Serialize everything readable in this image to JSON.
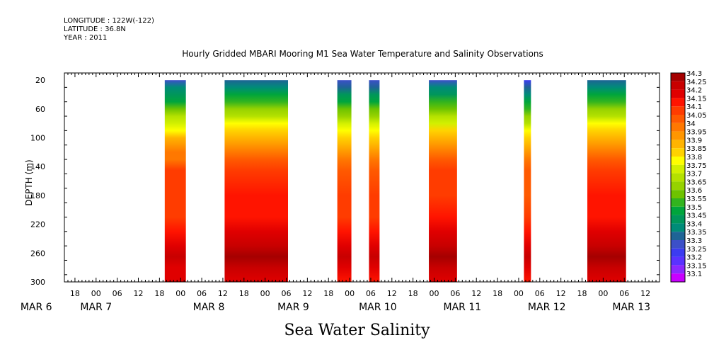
{
  "meta": {
    "longitude": "LONGITUDE : 122W(-122)",
    "latitude": "LATITUDE : 36.8N",
    "year": "YEAR : 2011"
  },
  "chart_data": {
    "type": "heatmap",
    "title": "Hourly Gridded MBARI Mooring M1 Sea Water Temperature and Salinity Observations",
    "subtitle": "Sea Water Salinity",
    "ylabel": "DEPTH (m)",
    "xlabel": "",
    "x_unit": "hours since 2011-03-06 00:00",
    "ylim": [
      300,
      10
    ],
    "y_ticks": [
      20,
      60,
      100,
      140,
      180,
      220,
      260,
      300
    ],
    "x_hour_ticks": [
      {
        "t": 18,
        "label": "18"
      },
      {
        "t": 24,
        "label": "00"
      },
      {
        "t": 30,
        "label": "06"
      },
      {
        "t": 36,
        "label": "12"
      },
      {
        "t": 42,
        "label": "18"
      },
      {
        "t": 48,
        "label": "00"
      },
      {
        "t": 54,
        "label": "06"
      },
      {
        "t": 60,
        "label": "12"
      },
      {
        "t": 66,
        "label": "18"
      },
      {
        "t": 72,
        "label": "00"
      },
      {
        "t": 78,
        "label": "06"
      },
      {
        "t": 84,
        "label": "12"
      },
      {
        "t": 90,
        "label": "18"
      },
      {
        "t": 96,
        "label": "00"
      },
      {
        "t": 102,
        "label": "06"
      },
      {
        "t": 108,
        "label": "12"
      },
      {
        "t": 114,
        "label": "18"
      },
      {
        "t": 120,
        "label": "00"
      },
      {
        "t": 126,
        "label": "06"
      },
      {
        "t": 132,
        "label": "12"
      },
      {
        "t": 138,
        "label": "18"
      },
      {
        "t": 144,
        "label": "00"
      },
      {
        "t": 150,
        "label": "06"
      },
      {
        "t": 156,
        "label": "12"
      },
      {
        "t": 162,
        "label": "18"
      },
      {
        "t": 168,
        "label": "00"
      },
      {
        "t": 174,
        "label": "06"
      },
      {
        "t": 180,
        "label": "12"
      }
    ],
    "x_date_labels": [
      {
        "t": 7,
        "label": "MAR  6"
      },
      {
        "t": 24,
        "label": "MAR  7"
      },
      {
        "t": 56,
        "label": "MAR  8"
      },
      {
        "t": 80,
        "label": "MAR  9"
      },
      {
        "t": 104,
        "label": "MAR 10"
      },
      {
        "t": 128,
        "label": "MAR 11"
      },
      {
        "t": 152,
        "label": "MAR 12"
      },
      {
        "t": 176,
        "label": "MAR 13"
      }
    ],
    "xlim": [
      15,
      184
    ],
    "data_blocks": [
      {
        "t_start": 43.5,
        "t_end": 49.5,
        "variant": "a"
      },
      {
        "t_start": 60.5,
        "t_end": 78.5,
        "variant": "b"
      },
      {
        "t_start": 92.5,
        "t_end": 96.5,
        "variant": "c"
      },
      {
        "t_start": 101.5,
        "t_end": 104.5,
        "variant": "c"
      },
      {
        "t_start": 118.5,
        "t_end": 126.5,
        "variant": "d"
      },
      {
        "t_start": 145.5,
        "t_end": 147.5,
        "variant": "e"
      },
      {
        "t_start": 163.5,
        "t_end": 174.5,
        "variant": "f"
      }
    ],
    "depth_profile": [
      {
        "depth": 20,
        "salinity": 33.3
      },
      {
        "depth": 30,
        "salinity": 33.38
      },
      {
        "depth": 40,
        "salinity": 33.45
      },
      {
        "depth": 50,
        "salinity": 33.52
      },
      {
        "depth": 60,
        "salinity": 33.6
      },
      {
        "depth": 70,
        "salinity": 33.68
      },
      {
        "depth": 80,
        "salinity": 33.75
      },
      {
        "depth": 90,
        "salinity": 33.82
      },
      {
        "depth": 100,
        "salinity": 33.88
      },
      {
        "depth": 110,
        "salinity": 33.93
      },
      {
        "depth": 120,
        "salinity": 33.98
      },
      {
        "depth": 130,
        "salinity": 34.02
      },
      {
        "depth": 145,
        "salinity": 34.08
      },
      {
        "depth": 180,
        "salinity": 34.1
      },
      {
        "depth": 210,
        "salinity": 34.12
      },
      {
        "depth": 230,
        "salinity": 34.17
      },
      {
        "depth": 250,
        "salinity": 34.22
      },
      {
        "depth": 265,
        "salinity": 34.27
      },
      {
        "depth": 280,
        "salinity": 34.22
      },
      {
        "depth": 300,
        "salinity": 34.18
      }
    ],
    "colorbar": [
      {
        "label": "34.3",
        "color": "#a50000"
      },
      {
        "label": "34.25",
        "color": "#c80000"
      },
      {
        "label": "34.2",
        "color": "#e00000"
      },
      {
        "label": "34.15",
        "color": "#ff1400"
      },
      {
        "label": "34.1",
        "color": "#ff3c00"
      },
      {
        "label": "34.05",
        "color": "#ff5a00"
      },
      {
        "label": "34",
        "color": "#ff7800"
      },
      {
        "label": "33.95",
        "color": "#ff9600"
      },
      {
        "label": "33.9",
        "color": "#ffb400"
      },
      {
        "label": "33.85",
        "color": "#ffd200"
      },
      {
        "label": "33.8",
        "color": "#ffff00"
      },
      {
        "label": "33.75",
        "color": "#d2f000"
      },
      {
        "label": "33.7",
        "color": "#b4e100"
      },
      {
        "label": "33.65",
        "color": "#96d200"
      },
      {
        "label": "33.6",
        "color": "#6ec300"
      },
      {
        "label": "33.55",
        "color": "#32b41e"
      },
      {
        "label": "33.5",
        "color": "#00a53c"
      },
      {
        "label": "33.45",
        "color": "#00965a"
      },
      {
        "label": "33.4",
        "color": "#008c78"
      },
      {
        "label": "33.35",
        "color": "#1e6496"
      },
      {
        "label": "33.3",
        "color": "#3c50c8"
      },
      {
        "label": "33.25",
        "color": "#3c3cf0"
      },
      {
        "label": "33.2",
        "color": "#5a32ff"
      },
      {
        "label": "33.15",
        "color": "#8c28ff"
      },
      {
        "label": "33.1",
        "color": "#c800ff"
      }
    ]
  }
}
